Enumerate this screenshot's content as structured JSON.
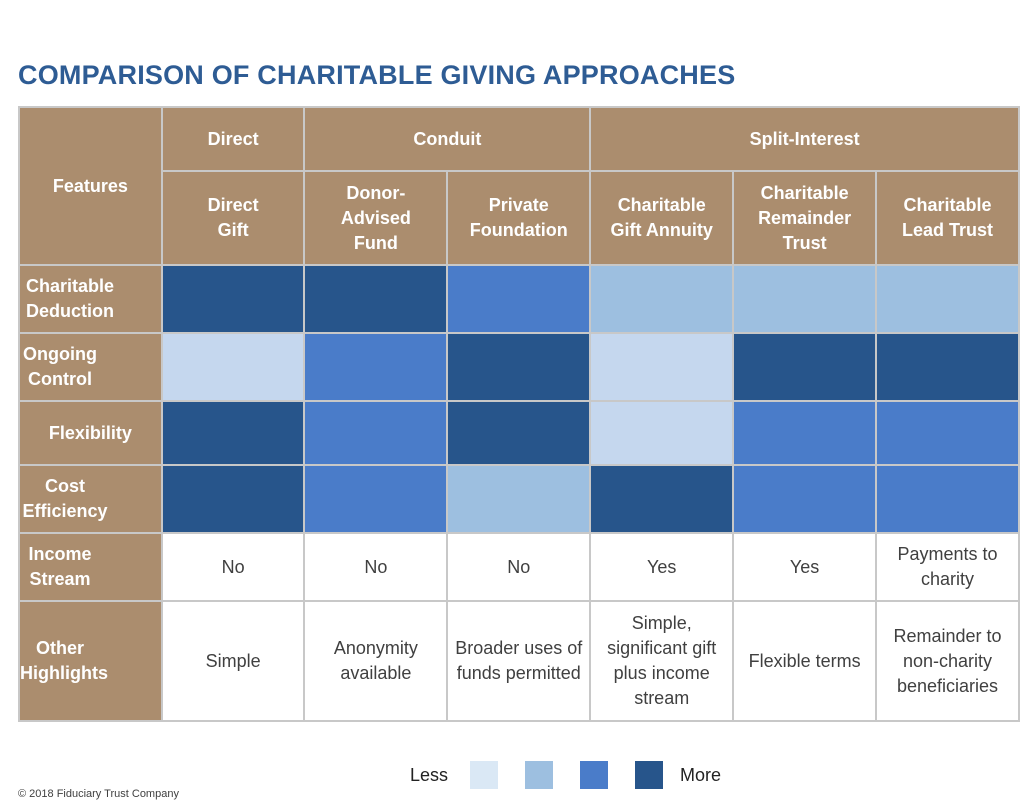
{
  "title": "COMPARISON OF CHARITABLE GIVING APPROACHES",
  "header": {
    "features": "Features",
    "groups": [
      "Direct",
      "Conduit",
      "Split-Interest"
    ],
    "columns": [
      "Direct Gift",
      "Donor-Advised Fund",
      "Private Foundation",
      "Charitable Gift Annuity",
      "Charitable Remainder Trust",
      "Charitable Lead Trust"
    ]
  },
  "rows": [
    {
      "label": "Charitable Deduction",
      "levels": [
        4,
        4,
        3,
        2,
        2,
        2
      ]
    },
    {
      "label": "Ongoing Control",
      "levels": [
        1,
        3,
        4,
        1,
        4,
        4
      ]
    },
    {
      "label": "Flexibility",
      "levels": [
        4,
        3,
        4,
        1,
        3,
        3
      ]
    },
    {
      "label": "Cost Efficiency",
      "levels": [
        4,
        3,
        2,
        4,
        3,
        3
      ]
    },
    {
      "label": "Income Stream",
      "values": [
        "No",
        "No",
        "No",
        "Yes",
        "Yes",
        "Payments to charity"
      ]
    },
    {
      "label": "Other Highlights",
      "values": [
        "Simple",
        "Anonymity available",
        "Broader uses of funds permitted",
        "Simple, significant gift plus income stream",
        "Flexible terms",
        "Remainder to non-charity beneficiaries"
      ]
    }
  ],
  "legend": {
    "less": "Less",
    "more": "More",
    "colors": [
      "#dae8f5",
      "#9dbfe0",
      "#4a7cc9",
      "#27558b"
    ]
  },
  "footer": "© 2018 Fiduciary Trust Company"
}
